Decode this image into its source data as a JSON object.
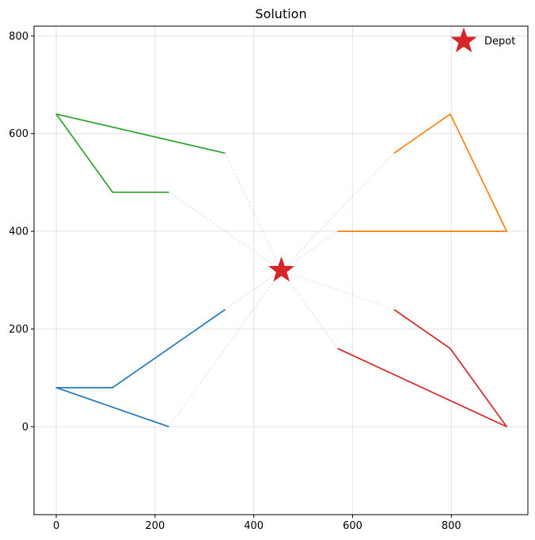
{
  "chart_data": {
    "type": "line",
    "title": "Solution",
    "xlabel": "",
    "ylabel": "",
    "xlim": [
      -45,
      955
    ],
    "ylim": [
      -180,
      820
    ],
    "xticks": [
      0,
      200,
      400,
      600,
      800
    ],
    "yticks": [
      0,
      200,
      400,
      600,
      800
    ],
    "grid": true,
    "legend": {
      "placement": "top-right",
      "entries": [
        "Depot"
      ]
    },
    "depot": {
      "x": 456,
      "y": 320,
      "label": "Depot",
      "color": "#d62728"
    },
    "connector_color": "#cccccc",
    "routes": [
      {
        "color": "#1f77b4",
        "points": [
          [
            342,
            240
          ],
          [
            114,
            80
          ],
          [
            0,
            80
          ],
          [
            228,
            0
          ]
        ]
      },
      {
        "color": "#ff7f0e",
        "points": [
          [
            684,
            560
          ],
          [
            798,
            640
          ],
          [
            912,
            400
          ],
          [
            570,
            400
          ]
        ]
      },
      {
        "color": "#2ca02c",
        "points": [
          [
            342,
            560
          ],
          [
            0,
            640
          ],
          [
            114,
            480
          ],
          [
            228,
            480
          ]
        ]
      },
      {
        "color": "#d62728",
        "points": [
          [
            684,
            240
          ],
          [
            798,
            160
          ],
          [
            912,
            0
          ],
          [
            570,
            160
          ]
        ]
      }
    ]
  }
}
